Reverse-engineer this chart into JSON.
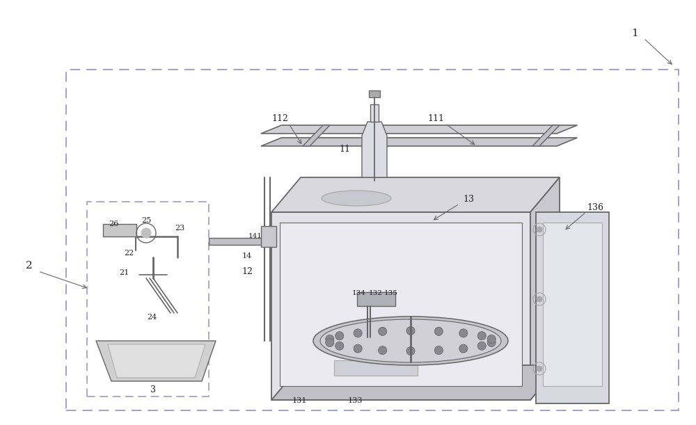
{
  "bg": "#ffffff",
  "lc": "#aaaaaa",
  "dc": "#666666",
  "dsc": "#9999cc",
  "tc": "#222222",
  "fw": 10.0,
  "fh": 6.11
}
